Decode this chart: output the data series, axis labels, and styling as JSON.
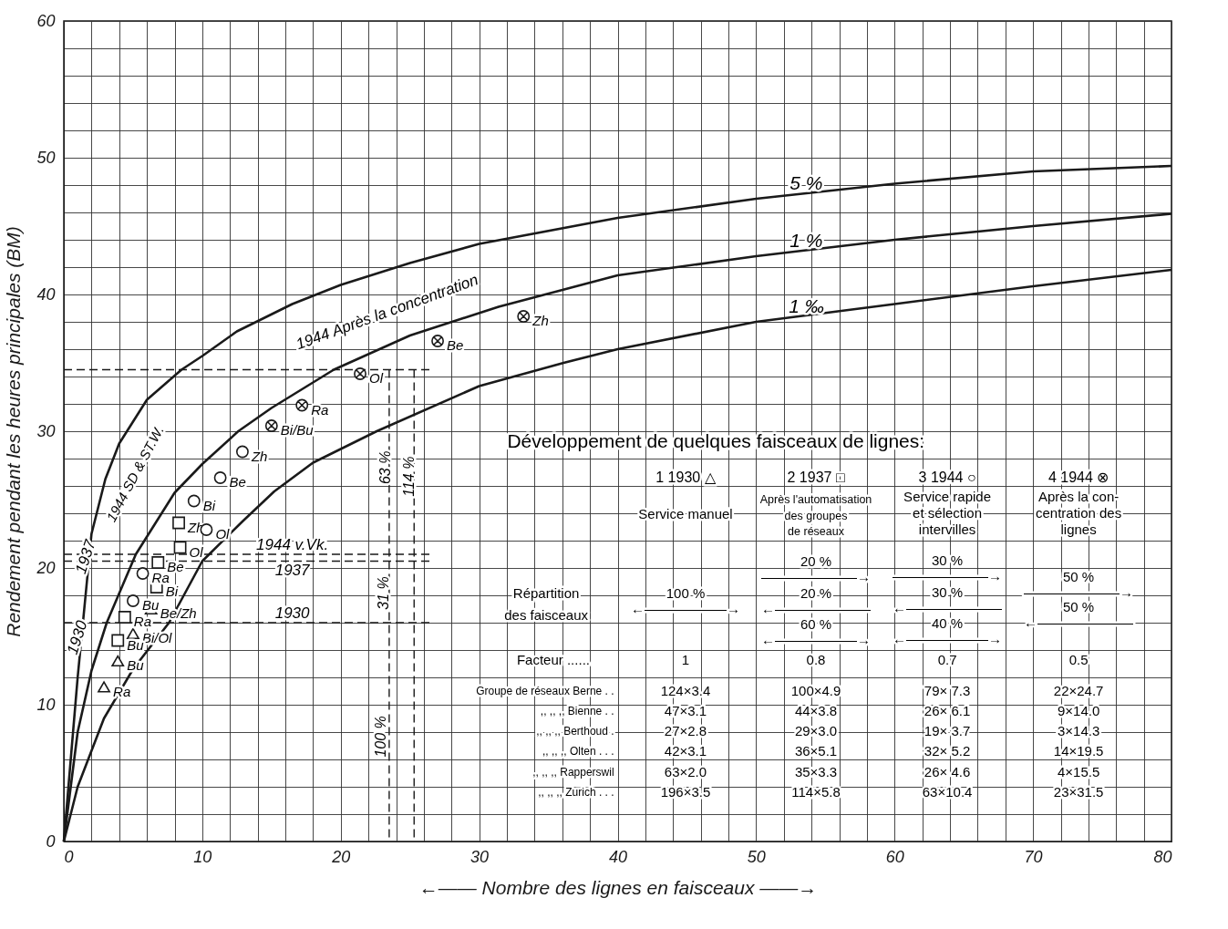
{
  "chart_data": {
    "type": "line",
    "xlabel": "←—— Nombre des lignes en faisceaux ——→",
    "ylabel": "Rendement pendant les heures principales  (BM)",
    "xlim": [
      0,
      80
    ],
    "ylim": [
      0,
      60
    ],
    "xticks": [
      0,
      {
        "value": 2,
        "label": null
      },
      {
        "value": 4,
        "label": null
      },
      {
        "value": 6,
        "label": null
      },
      {
        "value": 8,
        "label": null
      },
      10,
      {
        "value": 12,
        "label": null
      },
      {
        "value": 14,
        "label": null
      },
      {
        "value": 16,
        "label": null
      },
      {
        "value": 18,
        "label": null
      },
      20,
      {
        "value": 22,
        "label": null
      },
      {
        "value": 24,
        "label": null
      },
      {
        "value": 26,
        "label": null
      },
      {
        "value": 28,
        "label": null
      },
      30,
      {
        "value": 32,
        "label": null
      },
      {
        "value": 34,
        "label": null
      },
      {
        "value": 36,
        "label": null
      },
      {
        "value": 38,
        "label": null
      },
      40,
      {
        "value": 42,
        "label": null
      },
      {
        "value": 44,
        "label": null
      },
      {
        "value": 46,
        "label": null
      },
      {
        "value": 48,
        "label": null
      },
      50,
      {
        "value": 52,
        "label": null
      },
      {
        "value": 54,
        "label": null
      },
      {
        "value": 56,
        "label": null
      },
      {
        "value": 58,
        "label": null
      },
      60,
      {
        "value": 62,
        "label": null
      },
      {
        "value": 64,
        "label": null
      },
      {
        "value": 66,
        "label": null
      },
      {
        "value": 68,
        "label": null
      },
      70,
      {
        "value": 72,
        "label": null
      },
      {
        "value": 74,
        "label": null
      },
      {
        "value": 76,
        "label": null
      },
      {
        "value": 78,
        "label": null
      },
      80
    ],
    "yticks": [
      0,
      {
        "value": 2,
        "label": null
      },
      {
        "value": 4,
        "label": null
      },
      {
        "value": 6,
        "label": null
      },
      {
        "value": 8,
        "label": null
      },
      10,
      {
        "value": 12,
        "label": null
      },
      {
        "value": 14,
        "label": null
      },
      {
        "value": 16,
        "label": null
      },
      {
        "value": 18,
        "label": null
      },
      20,
      {
        "value": 22,
        "label": null
      },
      {
        "value": 24,
        "label": null
      },
      {
        "value": 26,
        "label": null
      },
      {
        "value": 28,
        "label": null
      },
      30,
      {
        "value": 32,
        "label": null
      },
      {
        "value": 34,
        "label": null
      },
      {
        "value": 36,
        "label": null
      },
      {
        "value": 38,
        "label": null
      },
      40,
      {
        "value": 42,
        "label": null
      },
      {
        "value": 44,
        "label": null
      },
      {
        "value": 46,
        "label": null
      },
      {
        "value": 48,
        "label": null
      },
      50,
      {
        "value": 52,
        "label": null
      },
      {
        "value": 54,
        "label": null
      },
      {
        "value": 56,
        "label": null
      },
      {
        "value": 58,
        "label": null
      },
      60
    ],
    "grid": true,
    "series": [
      {
        "name": "5 %",
        "color": "#1a1a1a",
        "x": [
          0,
          1,
          2,
          3,
          4,
          6,
          8.5,
          10,
          12.5,
          16.5,
          20,
          25,
          30,
          40,
          50,
          60,
          70,
          80
        ],
        "values": [
          0,
          12,
          22.5,
          26.5,
          29.1,
          32.3,
          34.5,
          35.5,
          37.3,
          39.3,
          40.7,
          42.3,
          43.7,
          45.6,
          47,
          48.1,
          49,
          49.4
        ]
      },
      {
        "name": "1 %",
        "color": "#1a1a1a",
        "x": [
          0,
          1,
          2,
          3.1,
          5.2,
          8,
          10,
          12.6,
          15,
          19.5,
          25,
          31.4,
          40,
          50,
          60,
          70,
          80
        ],
        "values": [
          0,
          8,
          12.5,
          16,
          21,
          25.5,
          27.6,
          30,
          31.7,
          34.5,
          37,
          39.1,
          41.4,
          42.8,
          44,
          45,
          45.9
        ]
      },
      {
        "name": "1 ‰",
        "color": "#1a1a1a",
        "x": [
          0,
          1,
          2.9,
          5,
          7.6,
          10,
          12.9,
          15.2,
          18,
          22.6,
          30,
          36.1,
          40,
          50,
          60,
          70,
          80
        ],
        "values": [
          0,
          4,
          9,
          12.6,
          16,
          20.5,
          23.4,
          25.6,
          27.7,
          30,
          33.3,
          35,
          36,
          38,
          39.3,
          40.6,
          41.8
        ]
      },
      {
        "type": "scatter",
        "marker": "triangle",
        "color": "#1a1a1a",
        "x": [
          2.9,
          3.9,
          5.0,
          6.3
        ],
        "values": [
          11.3,
          13.2,
          15.2,
          17.0
        ],
        "value_labels": [
          "Ra",
          "Bu",
          "Bi/Ol",
          "Be/Zh"
        ]
      },
      {
        "type": "scatter",
        "marker": "square",
        "color": "#1a1a1a",
        "x": [
          3.9,
          4.4,
          6.7,
          6.8,
          8.4,
          8.3
        ],
        "values": [
          14.7,
          16.4,
          18.6,
          20.4,
          21.5,
          23.3
        ],
        "value_labels": [
          "Bu",
          "Ra",
          "Bi",
          "Be",
          "Ol",
          "Zh"
        ]
      },
      {
        "type": "scatter",
        "marker": "circle",
        "color": "#1a1a1a",
        "x": [
          5.0,
          5.7,
          10.3,
          9.4,
          11.3,
          12.9
        ],
        "values": [
          17.6,
          19.6,
          22.8,
          24.9,
          26.6,
          28.5
        ],
        "value_labels": [
          "Bu",
          "Ra",
          "Ol",
          "Bi",
          "Be",
          "Zh"
        ]
      },
      {
        "type": "scatter",
        "marker": "cross",
        "color": "#1a1a1a",
        "x": [
          15.0,
          17.2,
          21.4,
          27.0,
          33.2
        ],
        "values": [
          30.4,
          31.9,
          34.2,
          36.6,
          38.4
        ],
        "value_labels": [
          "Bi/Bu",
          "Ra",
          "Ol",
          "Be",
          "Zh"
        ]
      }
    ],
    "ref_lines": [
      {
        "axis": "y",
        "value": 34.5,
        "line_style": "dashed",
        "color": "#1a1a1a"
      },
      {
        "axis": "y",
        "value": 21,
        "line_style": "dashed",
        "color": "#1a1a1a"
      },
      {
        "axis": "y",
        "value": 20.5,
        "line_style": "dashed",
        "color": "#1a1a1a"
      },
      {
        "axis": "y",
        "value": 16,
        "line_style": "dashed",
        "color": "#1a1a1a"
      },
      {
        "axis": "x",
        "value": 23.5,
        "line_style": "dashed",
        "color": "#1a1a1a"
      },
      {
        "axis": "x",
        "value": 25.3,
        "line_style": "dashed",
        "color": "#1a1a1a"
      }
    ],
    "annotations": [
      {
        "text": "1930",
        "x": 1.0,
        "y": 14.9
      },
      {
        "text": "1937",
        "x": 1.6,
        "y": 20.8
      },
      {
        "text": "1944 v.Vk.",
        "x": 16.5,
        "y": 21
      },
      {
        "text": "1937",
        "x": 16.5,
        "y": 20.5
      },
      {
        "text": "1930",
        "x": 16.5,
        "y": 16
      },
      "1944 SD & ST.W.",
      "1944 Après la concentration",
      "63 %",
      "114 %",
      "31 %",
      "100 %",
      "Développement de quelques faisceaux de lignes:",
      "1  1930  △",
      "Service manuel",
      "2  1937  □",
      "Après l'automatisation",
      "des groupes",
      "de réseaux",
      "3  1944  ○",
      "Service rapide",
      "et sélection",
      "intervilles",
      "4  1944  ⊗",
      "Après la con-",
      "centration des",
      "lignes",
      "Répartition",
      "des faisceaux",
      "100 %",
      "←——————→",
      "20 %",
      "———————→",
      "20 %",
      "←———————",
      "60 %",
      "←——————→",
      "30 %",
      "———————→",
      "30 %",
      "←———————",
      "40 %",
      "←——————→",
      "50 %",
      "———————→",
      "50 %",
      "←———————",
      "Facteur ......",
      "1",
      "0.8",
      "0.7",
      "0.5",
      "Groupe de réseaux Berne . .",
      "124×3.4",
      "100×4.9",
      "79×  7.3",
      "22×24.7",
      ",,    ,,    ,,    Bienne . .",
      "47×3.1",
      "44×3.8",
      "26×  6.1",
      "9×14.0",
      ",,    ,,    ,,    Berthoud .",
      "27×2.8",
      "29×3.0",
      "19×  3.7",
      "3×14.3",
      ",,    ,,    ,,    Olten . . .",
      "42×3.1",
      "36×5.1",
      "32×  5.2",
      "14×19.5",
      ",,    ,,    ,,    Rapperswil",
      "63×2.0",
      "35×3.3",
      "26×  4.6",
      "4×15.5",
      ",,    ,,    ,,    Zurich . . .",
      "196×3.5",
      "114×5.8",
      "63×10.4",
      "23×31.5"
    ]
  }
}
